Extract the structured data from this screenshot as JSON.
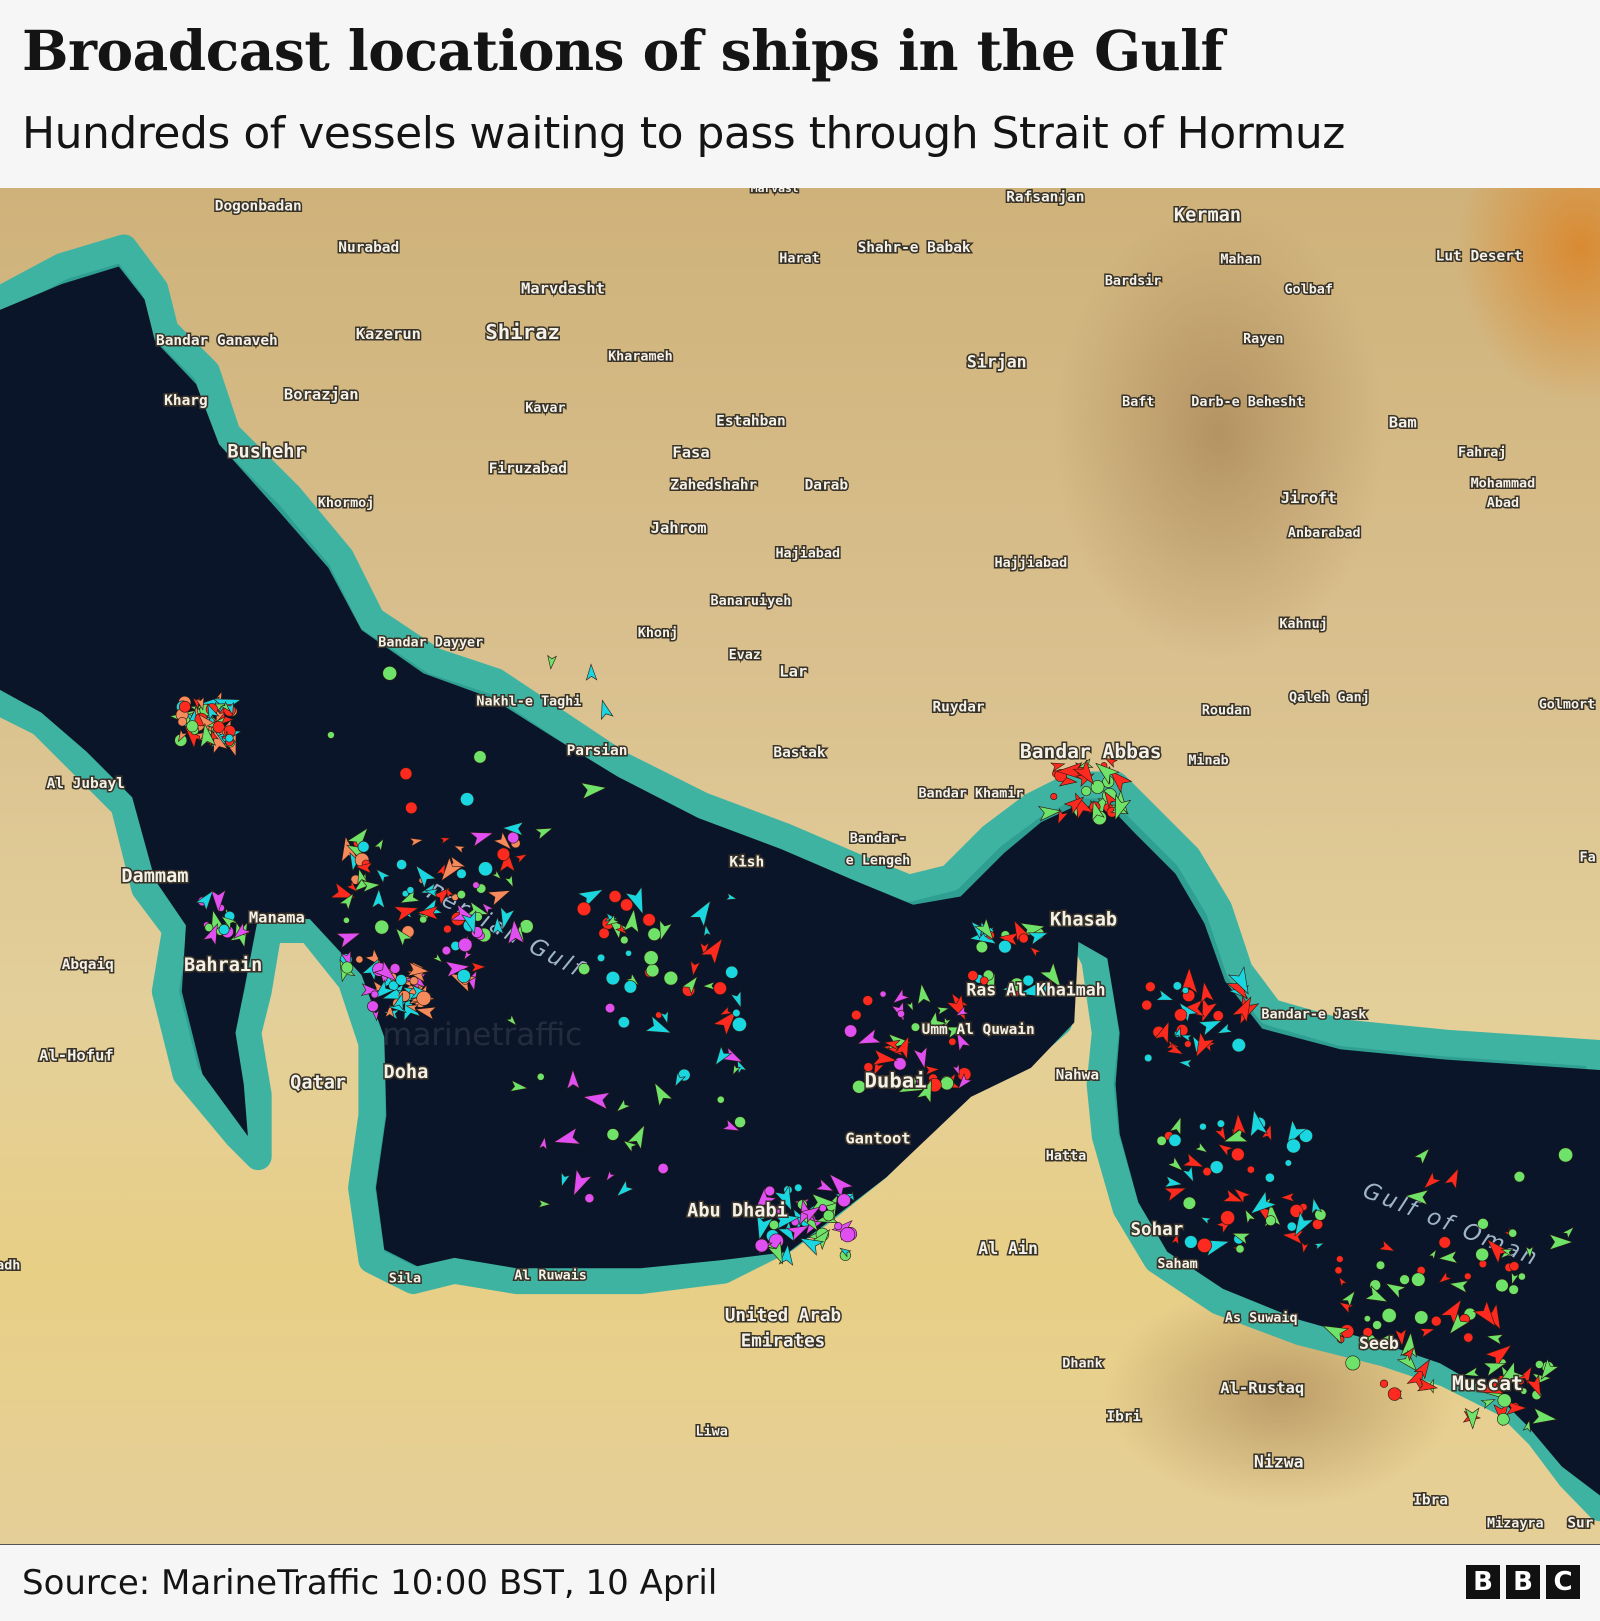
{
  "header": {
    "title": "Broadcast locations of ships in the Gulf",
    "subtitle": "Hundreds of vessels waiting to pass through Strait of Hormuz"
  },
  "map": {
    "water_labels": [
      "Persian Gulf",
      "Gulf of Oman"
    ],
    "watermark": "marinetraffic",
    "places": [
      "Dogonbadan",
      "Nurabad",
      "Marvdasht",
      "Shiraz",
      "Kazerun",
      "Bandar Ganaveh",
      "Kharameh",
      "Kharg",
      "Borazjan",
      "Kavar",
      "Estahban",
      "Bushehr",
      "Fasa",
      "Firuzabad",
      "Zahedshahr",
      "Darab",
      "Khormoj",
      "Jahrom",
      "Hajiabad",
      "Hajjiabad",
      "Banaruiyeh",
      "Khonj",
      "Evaz",
      "Lar",
      "Bandar Dayyer",
      "Nakhl-e Taghi",
      "Parsian",
      "Bastak",
      "Ruydar",
      "Harat",
      "Shahr-e Babak",
      "Rafsanjan",
      "Kerman",
      "Mahan",
      "Bardsir",
      "Golbaf",
      "Rayen",
      "Sirjan",
      "Baft",
      "Darb-e Behesht",
      "Bam",
      "Fahraj",
      "Mohammad",
      "Abad",
      "Jiroft",
      "Anbarabad",
      "Kahnuj",
      "Qaleh Ganj",
      "Roudan",
      "Golmort",
      "Minab",
      "Bandar Abbas",
      "Bandar Khamir",
      "Kish",
      "Bandar-",
      "e Lengeh",
      "Lut Desert",
      "Khasab",
      "Ras Al Khaimah",
      "Bandar-e Jask",
      "Umm Al Quwain",
      "Dubai",
      "Nahwa",
      "Hatta",
      "Gantoot",
      "Abu Dhabi",
      "Al Ain",
      "Sohar",
      "Saham",
      "As Suwaiq",
      "Seeb",
      "Muscat",
      "Al-Rustaq",
      "Dhank",
      "Ibri",
      "Nizwa",
      "Ibra",
      "Mizayra",
      "Sur",
      "Liwa",
      "United Arab",
      "Emirates",
      "Al Ruwais",
      "Sila",
      "Qatar",
      "Doha",
      "Bahrain",
      "Manama",
      "Dammam",
      "Abqaiq",
      "Al-Hofuf",
      "Al Jubayl",
      "adh",
      "Fa",
      "Marvast"
    ],
    "marker_colors": {
      "tanker": "#ff2a1f",
      "cargo": "#6fe26a",
      "passenger_other": "#19d6e0",
      "fishing_special": "#e04ff2",
      "tug_pleasure": "#f58a5c",
      "unknown": "#b0b0c0"
    }
  },
  "footer": {
    "source": "Source: MarineTraffic 10:00 BST, 10 April",
    "logo": [
      "B",
      "B",
      "C"
    ]
  }
}
